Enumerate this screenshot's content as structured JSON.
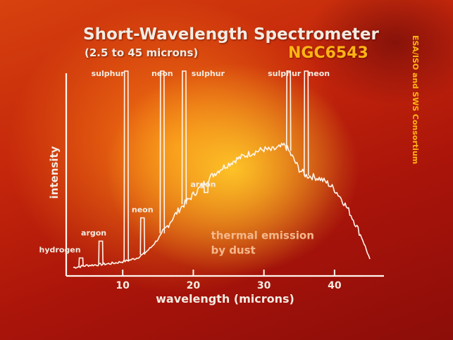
{
  "title": "Short-Wavelength Spectrometer",
  "subtitle": "(2.5 to 45 microns)",
  "object": "NGC6543",
  "credit": "ESA/ISO and SWS Consortium",
  "colors": {
    "text": "#f3ece2",
    "accent": "#ffb414",
    "annotation": "#f5b88c",
    "curve": "#fff6ee"
  },
  "chart_data": {
    "type": "line",
    "xlabel": "wavelength (microns)",
    "ylabel": "intensity",
    "xlim": [
      2,
      47
    ],
    "ylim": [
      0,
      100
    ],
    "xticks": [
      10,
      20,
      30,
      40
    ],
    "grid": false,
    "series": [
      {
        "x": [
          3.0,
          4.0,
          5.0,
          6.0,
          7.0,
          8.0,
          9.0,
          10.0,
          11.0,
          12.0,
          13.0,
          14.0,
          15.0,
          16.0,
          17.0,
          18.0,
          19.0,
          20.0,
          21.0,
          22.0,
          23.0,
          24.0,
          25.0,
          26.0,
          27.0,
          28.0,
          29.0,
          30.0,
          31.0,
          32.0,
          33.0,
          34.0,
          35.0,
          36.0,
          37.0,
          38.0,
          39.0,
          40.0,
          41.0,
          42.0,
          43.0,
          44.0,
          45.0
        ],
        "y": [
          4.0,
          4.5,
          5.0,
          5.2,
          5.5,
          5.8,
          6.2,
          6.8,
          7.5,
          8.5,
          10.5,
          13.5,
          17.5,
          22.0,
          27.0,
          31.5,
          35.0,
          38.5,
          42.0,
          45.5,
          48.5,
          51.0,
          53.0,
          55.0,
          56.5,
          58.0,
          59.0,
          60.0,
          59.5,
          60.5,
          62.0,
          56.5,
          50.5,
          47.5,
          47.0,
          46.0,
          44.0,
          41.0,
          36.5,
          31.0,
          24.5,
          17.0,
          8.0
        ]
      }
    ],
    "emission_lines": [
      {
        "label": "hydrogen",
        "x": 4.1,
        "peak": 8.5
      },
      {
        "label": "argon",
        "x": 6.9,
        "peak": 16.5
      },
      {
        "label": "sulphur",
        "x": 10.5,
        "peak": 97.0
      },
      {
        "label": "neon",
        "x": 12.8,
        "peak": 27.5
      },
      {
        "label": "neon",
        "x": 15.6,
        "peak": 97.0
      },
      {
        "label": "sulphur",
        "x": 18.7,
        "peak": 97.0
      },
      {
        "label": "argon",
        "x": 21.8,
        "peak": 39.5
      },
      {
        "label": "sulphur",
        "x": 33.5,
        "peak": 97.0
      },
      {
        "label": "neon",
        "x": 36.0,
        "peak": 97.0
      }
    ],
    "annotations": [
      {
        "text": "thermal emission",
        "x": 22.5,
        "y": 17.5
      },
      {
        "text": "by dust",
        "x": 22.5,
        "y": 10.5
      }
    ]
  }
}
